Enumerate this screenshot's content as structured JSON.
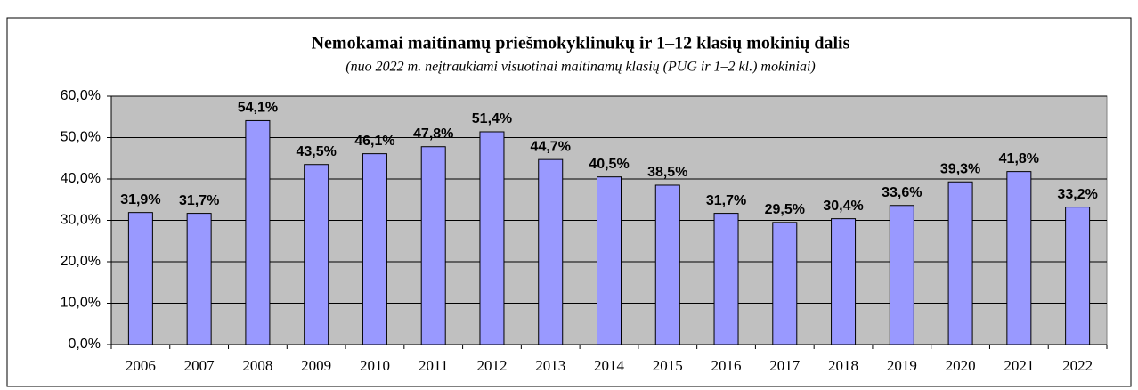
{
  "chart_data": {
    "type": "bar",
    "title": "Nemokamai maitinamų priešmokyklinukų ir 1–12 klasių mokinių dalis",
    "subtitle": "(nuo 2022 m. neįtraukiami visuotinai maitinamų klasių (PUG ir 1–2 kl.) mokiniai)",
    "categories": [
      "2006",
      "2007",
      "2008",
      "2009",
      "2010",
      "2011",
      "2012",
      "2013",
      "2014",
      "2015",
      "2016",
      "2017",
      "2018",
      "2019",
      "2020",
      "2021",
      "2022"
    ],
    "values": [
      31.9,
      31.7,
      54.1,
      43.5,
      46.1,
      47.8,
      51.4,
      44.7,
      40.5,
      38.5,
      31.7,
      29.5,
      30.4,
      33.6,
      39.3,
      41.8,
      33.2
    ],
    "value_labels": [
      "31,9%",
      "31,7%",
      "54,1%",
      "43,5%",
      "46,1%",
      "47,8%",
      "51,4%",
      "44,7%",
      "40,5%",
      "38,5%",
      "31,7%",
      "29,5%",
      "30,4%",
      "33,6%",
      "39,3%",
      "41,8%",
      "33,2%"
    ],
    "color": "#9999ff",
    "ylim": [
      0,
      60
    ],
    "yticks": [
      {
        "value": 0,
        "label": "0,0%"
      },
      {
        "value": 10,
        "label": "10,0%"
      },
      {
        "value": 20,
        "label": "20,0%"
      },
      {
        "value": 30,
        "label": "30,0%"
      },
      {
        "value": 40,
        "label": "40,0%"
      },
      {
        "value": 50,
        "label": "50,0%"
      },
      {
        "value": 60,
        "label": "60,0%"
      }
    ],
    "grid": true
  }
}
